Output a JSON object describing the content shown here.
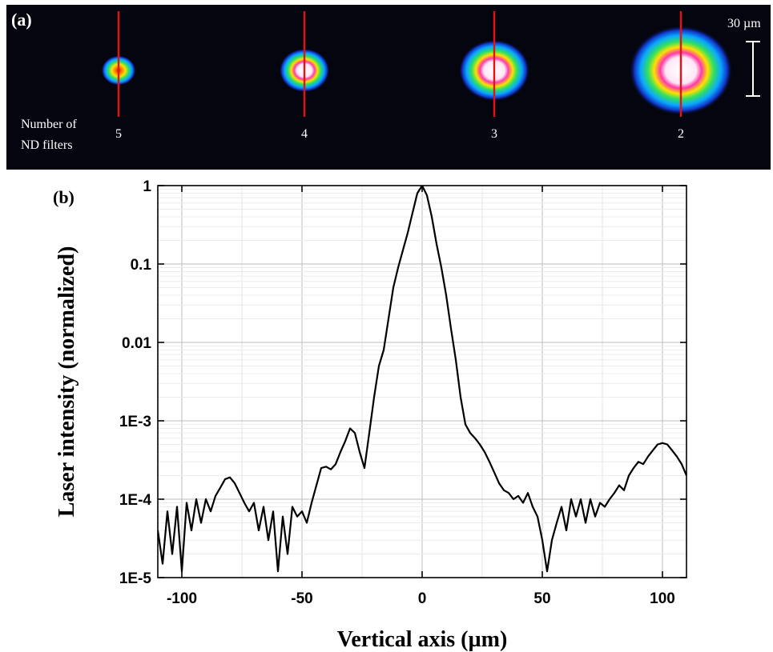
{
  "panel_a": {
    "label": "(a)",
    "scale_bar_label": "30 µm",
    "caption_line1": "Number of",
    "caption_line2": "ND filters",
    "spots": [
      {
        "filters": "5",
        "level": 0.15
      },
      {
        "filters": "4",
        "level": 0.35
      },
      {
        "filters": "3",
        "level": 0.6
      },
      {
        "filters": "2",
        "level": 1.0
      }
    ],
    "colors": {
      "background": "#050510",
      "marker_line": "#e81010"
    }
  },
  "panel_b": {
    "label": "(b)"
  },
  "chart_data": {
    "type": "line",
    "xlabel": "Vertical axis (µm)",
    "ylabel": "Laser intensity (normalized)",
    "xlim": [
      -110,
      110
    ],
    "ylim": [
      1e-05,
      1
    ],
    "yscale": "log",
    "grid": true,
    "xticks": [
      -100,
      -50,
      0,
      50,
      100
    ],
    "xtick_labels": [
      "-100",
      "-50",
      "0",
      "50",
      "100"
    ],
    "yticks": [
      1e-05,
      0.0001,
      0.001,
      0.01,
      0.1,
      1
    ],
    "ytick_labels": [
      "1E-5",
      "1E-4",
      "1E-3",
      "0.01",
      "0.1",
      "1"
    ],
    "series": [
      {
        "x": [
          -110,
          -108,
          -106,
          -104,
          -102,
          -100,
          -98,
          -96,
          -94,
          -92,
          -90,
          -88,
          -86,
          -84,
          -82,
          -80,
          -78,
          -76,
          -74,
          -72,
          -70,
          -68,
          -66,
          -64,
          -62,
          -60,
          -58,
          -56,
          -54,
          -52,
          -50,
          -48,
          -46,
          -44,
          -42,
          -40,
          -38,
          -36,
          -34,
          -32,
          -30,
          -28,
          -26,
          -24,
          -22,
          -20,
          -18,
          -16,
          -14,
          -12,
          -10,
          -8,
          -6,
          -4,
          -2,
          0,
          2,
          4,
          6,
          8,
          10,
          12,
          14,
          16,
          18,
          20,
          22,
          24,
          26,
          28,
          30,
          32,
          34,
          36,
          38,
          40,
          42,
          44,
          46,
          48,
          50,
          52,
          54,
          56,
          58,
          60,
          62,
          64,
          66,
          68,
          70,
          72,
          74,
          76,
          78,
          80,
          82,
          84,
          86,
          88,
          90,
          92,
          94,
          96,
          98,
          100,
          102,
          104,
          106,
          108,
          110
        ],
        "y": [
          4e-05,
          1.5e-05,
          7e-05,
          2e-05,
          8e-05,
          1.2e-05,
          9e-05,
          4e-05,
          0.0001,
          5e-05,
          0.0001,
          7e-05,
          0.00011,
          0.00014,
          0.00018,
          0.00019,
          0.00016,
          0.00012,
          9e-05,
          7e-05,
          9e-05,
          4e-05,
          8e-05,
          3e-05,
          7e-05,
          1.2e-05,
          6e-05,
          2e-05,
          8e-05,
          6e-05,
          7e-05,
          5e-05,
          9e-05,
          0.00015,
          0.00025,
          0.00026,
          0.00024,
          0.00028,
          0.0004,
          0.00055,
          0.0008,
          0.0007,
          0.0004,
          0.00025,
          0.0007,
          0.002,
          0.005,
          0.008,
          0.02,
          0.05,
          0.09,
          0.15,
          0.25,
          0.45,
          0.8,
          1.0,
          0.75,
          0.4,
          0.18,
          0.09,
          0.04,
          0.015,
          0.006,
          0.002,
          0.0009,
          0.0007,
          0.0006,
          0.0005,
          0.0004,
          0.0003,
          0.00022,
          0.00016,
          0.00013,
          0.00012,
          0.0001,
          0.00011,
          9e-05,
          0.00012,
          8e-05,
          6e-05,
          3e-05,
          1.2e-05,
          3e-05,
          5e-05,
          8e-05,
          4e-05,
          0.0001,
          6e-05,
          0.0001,
          5e-05,
          0.0001,
          6e-05,
          9e-05,
          8e-05,
          0.0001,
          0.00012,
          0.00015,
          0.00013,
          0.0002,
          0.00025,
          0.0003,
          0.00028,
          0.00035,
          0.00042,
          0.0005,
          0.00052,
          0.0005,
          0.00042,
          0.00035,
          0.00028,
          0.0002
        ]
      }
    ]
  }
}
